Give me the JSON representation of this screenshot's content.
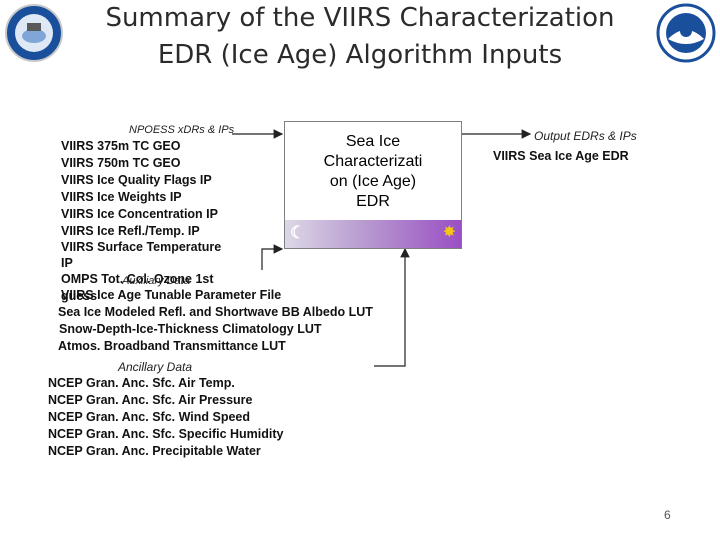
{
  "title_line1": "Summary of the VIIRS Characterization",
  "title_line2": "EDR (Ice Age) Algorithm Inputs",
  "npoess_label": "NPOESS xDRs & IPs",
  "input_lines": [
    "VIIRS 375m TC GEO",
    "VIIRS 750m TC GEO",
    "VIIRS Ice Quality Flags IP",
    "VIIRS Ice Weights IP",
    "VIIRS Ice Concentration IP",
    "VIIRS Ice Refl./Temp. IP",
    "VIIRS Surface Temperature",
    "IP",
    "OMPS Tot. Col. Ozone  1st",
    "guess"
  ],
  "auxiliary_label": "Auxiliary Data",
  "aux_lines": [
    "VIIRS Ice Age Tunable Parameter File",
    "Sea Ice Modeled Refl. and  Shortwave BB Albedo  LUT",
    "Snow-Depth-Ice-Thickness Climatology LUT",
    "Atmos. Broadband Transmittance LUT"
  ],
  "box_text": "Sea Ice\nCharacterizati\non (Ice Age)\nEDR",
  "output_label": "Output EDRs & IPs",
  "output_line": "VIIRS Sea Ice Age EDR",
  "ancillary_label": "Ancillary Data",
  "anc_lines": [
    "NCEP Gran. Anc. Sfc. Air Temp.",
    "NCEP Gran. Anc. Sfc. Air Pressure",
    "NCEP Gran. Anc. Sfc. Wind Speed",
    "NCEP Gran. Anc. Sfc. Specific Humidity",
    "NCEP Gran. Anc. Precipitable Water"
  ],
  "page_number": "6",
  "colors": {
    "logo_blue": "#1a4f9c",
    "arrow": "#222222",
    "box_bar_end": "#9a4fc4"
  }
}
